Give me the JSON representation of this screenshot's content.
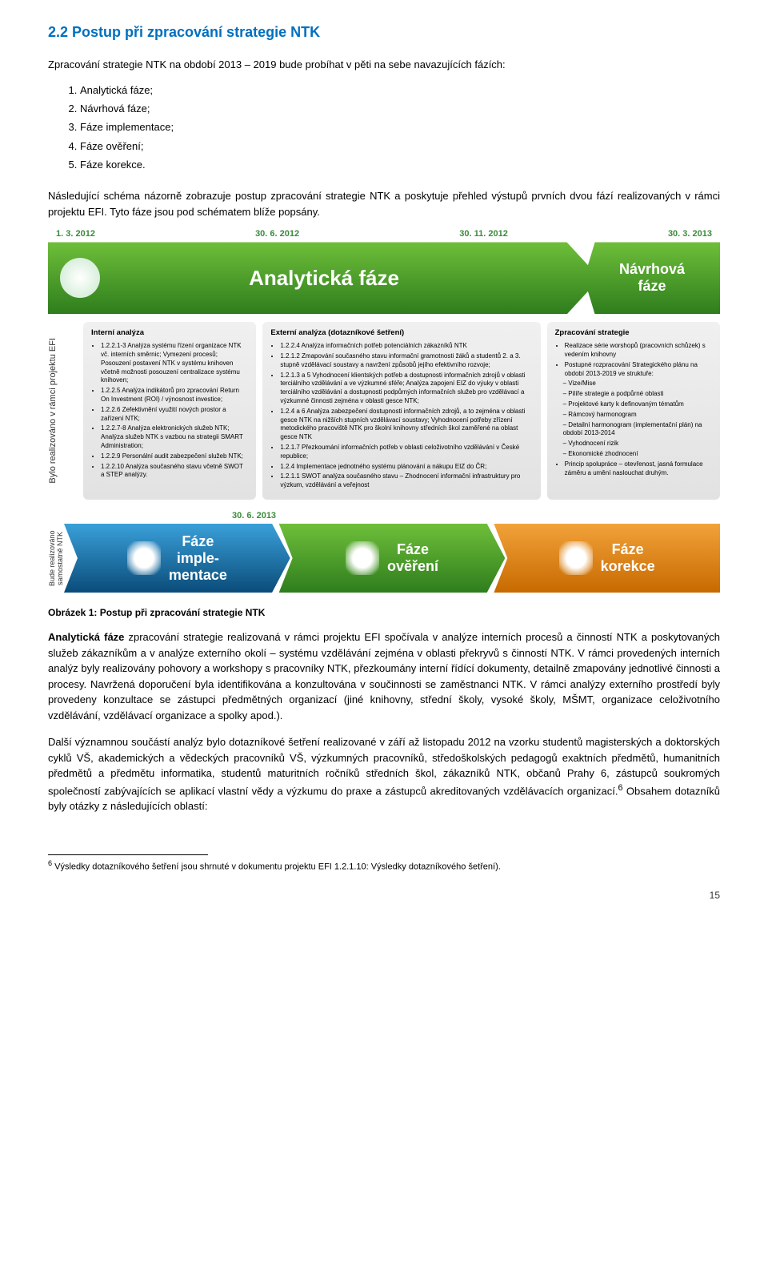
{
  "section": {
    "title": "2.2  Postup při zpracování strategie NTK",
    "intro": "Zpracování strategie NTK na období 2013 – 2019 bude probíhat v pěti na sebe navazujících fázích:",
    "phase_list": [
      "Analytická fáze;",
      "Návrhová fáze;",
      "Fáze implementace;",
      "Fáze ověření;",
      "Fáze korekce."
    ],
    "after_list": "Následující schéma názorně zobrazuje postup zpracování strategie NTK a poskytuje přehled výstupů prvních dvou fází realizovaných v rámci projektu EFI. Tyto fáze jsou pod schématem blíže popsány."
  },
  "diagram": {
    "dates": [
      "1. 3. 2012",
      "30. 6. 2012",
      "30. 11. 2012",
      "30. 3. 2013"
    ],
    "big_arrow_label": "Analytická fáze",
    "side_arrow": {
      "line1": "Návrhová",
      "line2": "fáze"
    },
    "side_label_left": "Bylo realizováno v rámci projektu EFI",
    "columns": {
      "col1": {
        "title": "Interní analýza",
        "items": [
          "1.2.2.1-3 Analýza systému řízení organizace NTK vč. interních směrnic; Vymezení procesů; Posouzení postavení NTK v systému knihoven včetně možnosti posouzení centralizace systému knihoven;",
          "1.2.2.5 Analýza indikátorů pro zpracování Return On Investment (ROI) / výnosnost investice;",
          "1.2.2.6 Zefektivnění využití nových prostor a zařízení NTK;",
          "1.2.2.7-8 Analýza elektronických služeb NTK; Analýza služeb NTK s vazbou na strategii SMART Administration;",
          "1.2.2.9 Personální audit zabezpečení služeb NTK;",
          "1.2.2.10 Analýza současného stavu včetně SWOT a STEP analýzy."
        ]
      },
      "col2": {
        "title": "Externí analýza (dotazníkové šetření)",
        "items": [
          "1.2.2.4 Analýza informačních potřeb potenciálních zákazníků NTK",
          "1.2.1.2 Zmapování současného stavu informační gramotnosti žáků a studentů 2. a 3. stupně vzdělávací soustavy a navržení způsobů jejího efektivního rozvoje;",
          "1.2.1.3 a 5 Vyhodnocení klientských potřeb a dostupnosti informačních zdrojů v oblasti terciálního vzdělávání a ve výzkumné sféře; Analýza zapojení EIZ do výuky v oblasti terciálního vzdělávání a dostupnosti podpůrných informačních služeb pro vzdělávací a výzkumné činnosti zejména v oblasti gesce NTK;",
          "1.2.4 a 6 Analýza zabezpečení dostupnosti informačních zdrojů, a to zejména v oblasti gesce NTK na nižších stupních vzdělávací soustavy; Vyhodnocení potřeby zřízení metodického pracoviště NTK pro školní knihovny středních škol zaměřené na oblast gesce NTK",
          "1.2.1.7 Přezkoumání informačních potřeb v oblasti celoživotního vzdělávání v České republice;",
          "1.2.4 Implementace jednotného systému plánování a nákupu EIZ do ČR;",
          "1.2.1.1 SWOT analýza současného stavu – Zhodnocení informační infrastruktury pro výzkum, vzdělávání a veřejnost"
        ]
      },
      "col3": {
        "title": "Zpracování strategie",
        "items": [
          "Realizace série worshopů (pracovních schůzek) s vedením knihovny",
          "Postupné rozpracování  Strategického plánu na období 2013-2019 ve struktuře:"
        ],
        "sub": [
          "Vize/Mise",
          "Pilíře strategie a podpůrné oblasti",
          "Projektové karty k definovaným tématům",
          "Rámcový harmonogram",
          "Detailní harmonogram (implementační plán) na období 2013-2014",
          "Vyhodnocení rizik",
          "Ekonomické zhodnocení"
        ],
        "items2": [
          "Princip spolupráce – otevřenost, jasná formulace záměru a umění naslouchat druhým."
        ]
      }
    },
    "lower_date": "30. 6. 2013",
    "side_label_bottom": "Bude realizováno samostatně NTK",
    "phases_bottom": [
      {
        "line1": "Fáze",
        "line2": "imple-",
        "line3": "mentace",
        "cls": "blue"
      },
      {
        "line1": "Fáze",
        "line2": "ověření",
        "cls": "green"
      },
      {
        "line1": "Fáze",
        "line2": "korekce",
        "cls": "orange"
      }
    ],
    "caption": "Obrázek 1: Postup při zpracování strategie NTK"
  },
  "body": {
    "para1_bold": "Analytická fáze",
    "para1_rest": " zpracování strategie realizovaná v rámci projektu EFI spočívala v analýze interních procesů a činností NTK a poskytovaných služeb zákazníkům a v analýze externího okolí – systému vzdělávání zejména v oblasti překryvů s činností NTK. V rámci provedených interních analýz byly realizovány pohovory a workshopy s pracovníky NTK, přezkoumány interní řídící dokumenty, detailně zmapovány jednotlivé činnosti a procesy. Navržená doporučení byla identifikována a konzultována v součinnosti se zaměstnanci NTK. V rámci analýzy externího prostředí byly provedeny konzultace se zástupci předmětných organizací (jiné knihovny, střední školy, vysoké školy, MŠMT, organizace celoživotního vzdělávání, vzdělávací organizace a spolky apod.).",
    "para2": "Další významnou součástí analýz bylo dotazníkové šetření realizované v září až listopadu 2012 na vzorku studentů magisterských a doktorských cyklů VŠ, akademických a vědeckých pracovníků VŠ, výzkumných pracovníků, středoškolských pedagogů exaktních předmětů, humanitních předmětů a předmětu informatika, studentů maturitních ročníků středních škol, zákazníků NTK, občanů Prahy 6, zástupců soukromých společností zabývajících se aplikací vlastní vědy a výzkumu do praxe a zástupců akreditovaných vzdělávacích organizací.",
    "para2_sup": "6",
    "para2_cont": " Obsahem dotazníků byly otázky z následujících oblastí:"
  },
  "footnote": {
    "num": "6",
    "text": " Výsledky dotazníkového šetření jsou shrnuté v dokumentu projektu EFI 1.2.1.10: Výsledky dotazníkového šetření)."
  },
  "page": "15"
}
